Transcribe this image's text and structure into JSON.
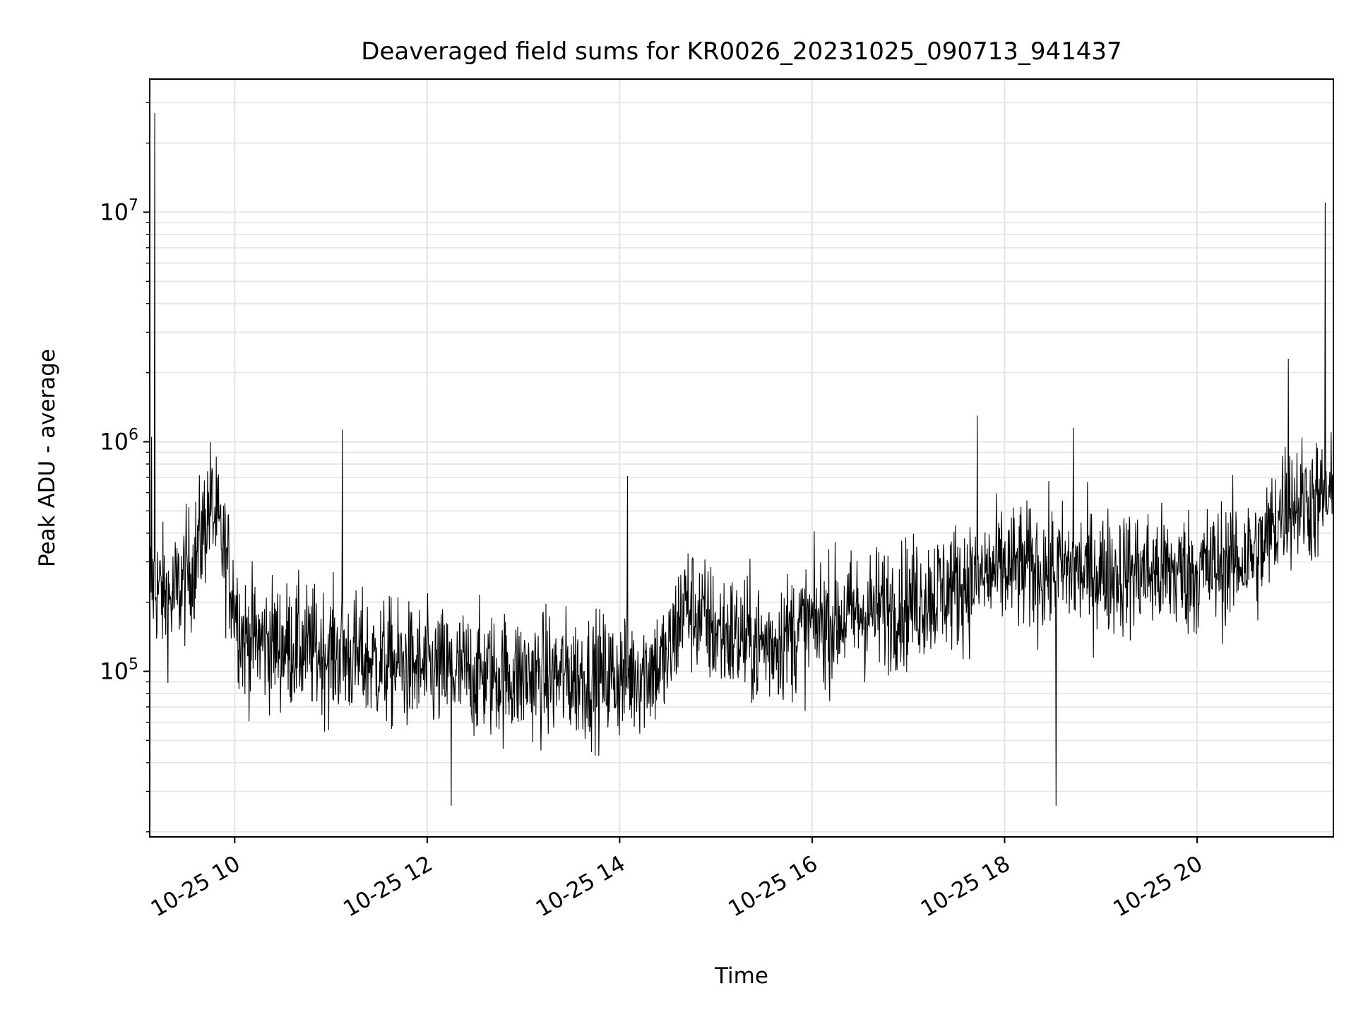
{
  "chart_data": {
    "type": "line",
    "title": "Deaveraged field sums for KR0026_20231025_090713_941437",
    "xlabel": "Time",
    "ylabel": "Peak ADU - average",
    "x_range": [
      "2023-10-25 09:07",
      "2023-10-25 21:25"
    ],
    "y_scale": "log",
    "ylim": [
      19000,
      38000000
    ],
    "grid": true,
    "line_color": "#000000",
    "grid_color": "#e6e6e6",
    "x_ticks": [
      {
        "value": "2023-10-25 10:00",
        "label": "10-25 10"
      },
      {
        "value": "2023-10-25 12:00",
        "label": "10-25 12"
      },
      {
        "value": "2023-10-25 14:00",
        "label": "10-25 14"
      },
      {
        "value": "2023-10-25 16:00",
        "label": "10-25 16"
      },
      {
        "value": "2023-10-25 18:00",
        "label": "10-25 18"
      },
      {
        "value": "2023-10-25 20:00",
        "label": "10-25 20"
      }
    ],
    "y_ticks": [
      {
        "value": 100000,
        "base": "10",
        "exp": "5"
      },
      {
        "value": 1000000,
        "base": "10",
        "exp": "6"
      },
      {
        "value": 10000000,
        "base": "10",
        "exp": "7"
      }
    ],
    "baseline": [
      {
        "x": "2023-10-25 09:07",
        "y": 250000
      },
      {
        "x": "2023-10-25 09:20",
        "y": 200000
      },
      {
        "x": "2023-10-25 09:35",
        "y": 300000
      },
      {
        "x": "2023-10-25 09:45",
        "y": 550000
      },
      {
        "x": "2023-10-25 09:55",
        "y": 300000
      },
      {
        "x": "2023-10-25 10:05",
        "y": 140000
      },
      {
        "x": "2023-10-25 11:00",
        "y": 120000
      },
      {
        "x": "2023-10-25 12:00",
        "y": 100000
      },
      {
        "x": "2023-10-25 13:00",
        "y": 95000
      },
      {
        "x": "2023-10-25 14:00",
        "y": 95000
      },
      {
        "x": "2023-10-25 14:30",
        "y": 110000
      },
      {
        "x": "2023-10-25 14:40",
        "y": 200000
      },
      {
        "x": "2023-10-25 15:00",
        "y": 150000
      },
      {
        "x": "2023-10-25 15:30",
        "y": 130000
      },
      {
        "x": "2023-10-25 16:00",
        "y": 160000
      },
      {
        "x": "2023-10-25 17:00",
        "y": 200000
      },
      {
        "x": "2023-10-25 18:00",
        "y": 280000
      },
      {
        "x": "2023-10-25 19:00",
        "y": 270000
      },
      {
        "x": "2023-10-25 20:00",
        "y": 270000
      },
      {
        "x": "2023-10-25 20:40",
        "y": 330000
      },
      {
        "x": "2023-10-25 20:55",
        "y": 550000
      },
      {
        "x": "2023-10-25 21:25",
        "y": 550000
      }
    ],
    "spikes": [
      {
        "x": "2023-10-25 09:10",
        "y": 27000000
      },
      {
        "x": "2023-10-25 09:08",
        "y": 1050000
      },
      {
        "x": "2023-10-25 11:07",
        "y": 1130000
      },
      {
        "x": "2023-10-25 14:05",
        "y": 710000
      },
      {
        "x": "2023-10-25 17:43",
        "y": 1300000
      },
      {
        "x": "2023-10-25 18:43",
        "y": 1150000
      },
      {
        "x": "2023-10-25 20:57",
        "y": 2300000
      },
      {
        "x": "2023-10-25 21:20",
        "y": 11000000
      },
      {
        "x": "2023-10-25 18:32",
        "y": 26000
      },
      {
        "x": "2023-10-25 12:15",
        "y": 26000
      }
    ]
  }
}
